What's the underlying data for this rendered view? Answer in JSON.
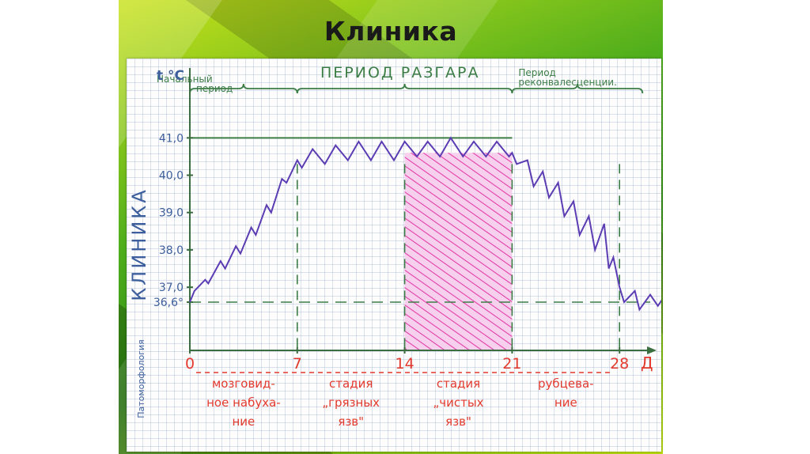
{
  "slide": {
    "title": "Клиника"
  },
  "chart_data": {
    "type": "line",
    "title": "",
    "ylabel": "t °C",
    "xlabel": "Д",
    "left_label": "КЛИНИКА",
    "bottom_left_label": "Патоморфология",
    "xlim": [
      0,
      35
    ],
    "ylim": [
      35.4,
      41.3
    ],
    "y_ticks": [
      {
        "value": 36.6,
        "label": "36,6°"
      },
      {
        "value": 37.0,
        "label": "37,0"
      },
      {
        "value": 38.0,
        "label": "38,0"
      },
      {
        "value": 39.0,
        "label": "39,0"
      },
      {
        "value": 40.0,
        "label": "40,0"
      },
      {
        "value": 41.0,
        "label": "41,0"
      }
    ],
    "x_ticks": [
      {
        "value": 0,
        "label": "0"
      },
      {
        "value": 7,
        "label": "7"
      },
      {
        "value": 14,
        "label": "14"
      },
      {
        "value": 21,
        "label": "21"
      },
      {
        "value": 28,
        "label": "28"
      }
    ],
    "reference_line": 36.6,
    "periods": [
      {
        "label": "Начальный период",
        "from": 0,
        "to": 7
      },
      {
        "label": "Период разгара",
        "from": 7,
        "to": 28
      },
      {
        "label": "Период реконвалесценции.",
        "from": 21,
        "to": 35
      }
    ],
    "stages": [
      {
        "label": [
          "мозговид-",
          "ное набуха-",
          "ние"
        ],
        "from": 0,
        "to": 7
      },
      {
        "label": [
          "стадия",
          "„грязных",
          "язв\""
        ],
        "from": 7,
        "to": 14
      },
      {
        "label": [
          "стадия",
          "„чистых",
          "язв\""
        ],
        "from": 14,
        "to": 21
      },
      {
        "label": [
          "рубцева-",
          "ние"
        ],
        "from": 21,
        "to": 28
      }
    ],
    "highlight_range": [
      14,
      21
    ],
    "series": [
      {
        "x": [
          0,
          0.3,
          1,
          1.2,
          2,
          2.3,
          3,
          3.3,
          4,
          4.3,
          5,
          5.3,
          6,
          6.3,
          7,
          7.3,
          8,
          8.8,
          9.5,
          10.3,
          11,
          11.8,
          12.5,
          13.3,
          14,
          14.8,
          15.5,
          16.3,
          17,
          17.8,
          18.5,
          19.3,
          20,
          20.8,
          21,
          21.3,
          22,
          22.4,
          23,
          23.4,
          24,
          24.4,
          25,
          25.4,
          26,
          26.4,
          27,
          27.3,
          27.6,
          28,
          28.3,
          29,
          29.3,
          30,
          30.5,
          31,
          31.5
        ],
        "y": [
          36.6,
          36.9,
          37.2,
          37.1,
          37.7,
          37.5,
          38.1,
          37.9,
          38.6,
          38.4,
          39.2,
          39.0,
          39.9,
          39.8,
          40.4,
          40.2,
          40.7,
          40.3,
          40.8,
          40.4,
          40.9,
          40.4,
          40.9,
          40.4,
          40.9,
          40.5,
          40.9,
          40.5,
          41.0,
          40.5,
          40.9,
          40.5,
          40.9,
          40.5,
          40.6,
          40.3,
          40.4,
          39.7,
          40.1,
          39.4,
          39.8,
          38.9,
          39.3,
          38.4,
          38.9,
          38.0,
          38.7,
          37.5,
          37.8,
          37.0,
          36.6,
          36.9,
          36.4,
          36.8,
          36.5,
          36.8,
          36.6
        ]
      }
    ]
  }
}
